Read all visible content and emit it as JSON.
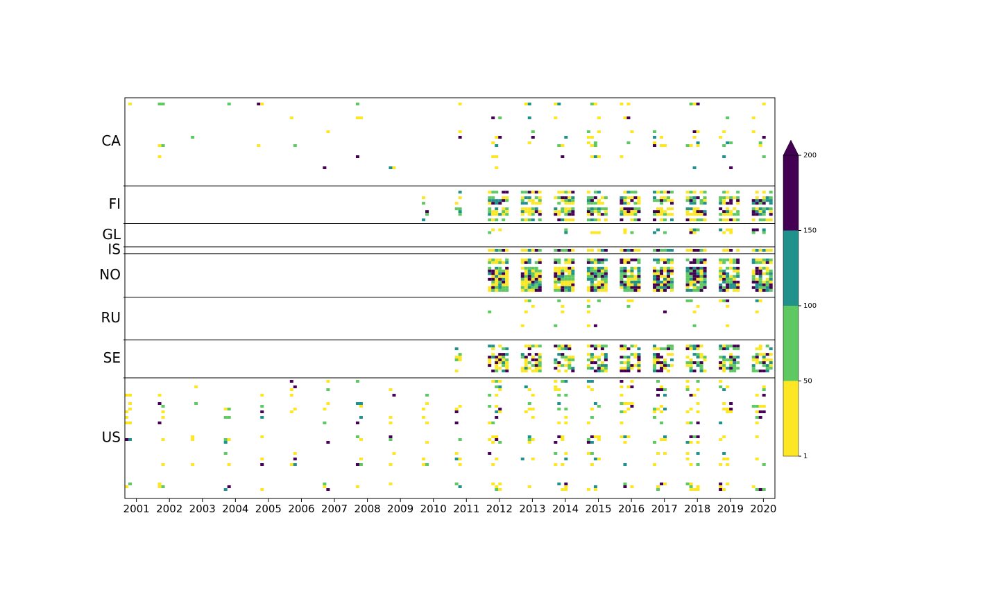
{
  "chart_data": {
    "type": "heatmap",
    "title": "",
    "xlabel": "",
    "ylabel": "",
    "x_tick_labels": [
      "2001",
      "2002",
      "2003",
      "2004",
      "2005",
      "2006",
      "2007",
      "2008",
      "2009",
      "2010",
      "2011",
      "2012",
      "2013",
      "2014",
      "2015",
      "2016",
      "2017",
      "2018",
      "2019",
      "2020"
    ],
    "xlim": [
      2000.65,
      2020.35
    ],
    "rows": [
      {
        "code": "CA",
        "share": 0.22
      },
      {
        "code": "FI",
        "share": 0.094
      },
      {
        "code": "GL",
        "share": 0.058
      },
      {
        "code": "IS",
        "share": 0.017
      },
      {
        "code": "NO",
        "share": 0.109
      },
      {
        "code": "RU",
        "share": 0.106
      },
      {
        "code": "SE",
        "share": 0.095
      },
      {
        "code": "US",
        "share": 0.301
      }
    ],
    "country_first_year": {
      "CA": 2001,
      "FI": 2010,
      "GL": 2012,
      "IS": 2012,
      "NO": 2012,
      "RU": 2012,
      "SE": 2011,
      "US": 2001
    },
    "country_density": {
      "CA": 0.22,
      "FI": 0.75,
      "GL": 0.3,
      "IS": 0.85,
      "NO": 0.85,
      "RU": 0.18,
      "SE": 0.6,
      "US": 0.28
    },
    "colorbar": {
      "boundaries": [
        1,
        50,
        100,
        150,
        200
      ],
      "tick_labels": [
        "1",
        "50",
        "100",
        "150",
        "200"
      ],
      "colors": [
        "#fde725",
        "#5ec962",
        "#21918c",
        "#440154"
      ],
      "extend": "max",
      "over_color": "#440154"
    }
  }
}
